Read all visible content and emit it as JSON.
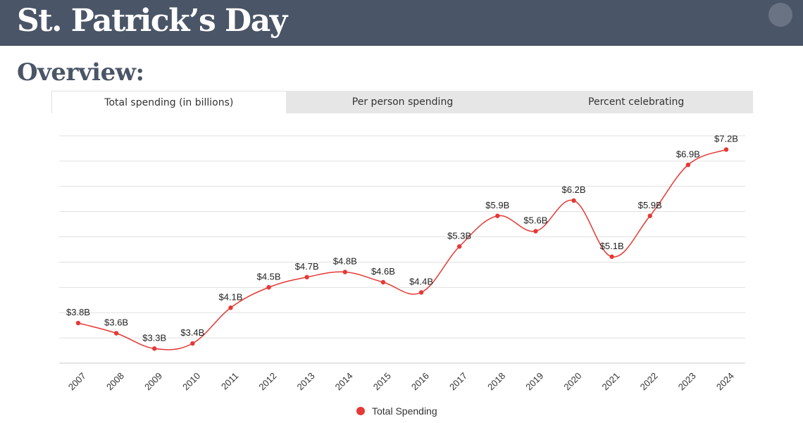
{
  "header": {
    "title": "St. Patrick’s Day"
  },
  "subtitle": "Overview:",
  "tabs": [
    {
      "label": "Total spending (in billions)",
      "active": true
    },
    {
      "label": "Per person spending",
      "active": false
    },
    {
      "label": "Percent celebrating",
      "active": false
    }
  ],
  "colors": {
    "header_bg": "#4a5567",
    "series": "#e53935",
    "grid": "#e0e0e0"
  },
  "chart_data": {
    "type": "line",
    "x": [
      "2007",
      "2008",
      "2009",
      "2010",
      "2011",
      "2012",
      "2013",
      "2014",
      "2015",
      "2016",
      "2017",
      "2018",
      "2019",
      "2020",
      "2021",
      "2022",
      "2023",
      "2024"
    ],
    "series": [
      {
        "name": "Total Spending",
        "values": [
          3.8,
          3.6,
          3.3,
          3.4,
          4.1,
          4.5,
          4.7,
          4.8,
          4.6,
          4.4,
          5.3,
          5.9,
          5.6,
          6.2,
          5.1,
          5.9,
          6.9,
          7.2
        ],
        "labels": [
          "$3.8B",
          "$3.6B",
          "$3.3B",
          "$3.4B",
          "$4.1B",
          "$4.5B",
          "$4.7B",
          "$4.8B",
          "$4.6B",
          "$4.4B",
          "$5.3B",
          "$5.9B",
          "$5.6B",
          "$6.2B",
          "$5.1B",
          "$5.9B",
          "$6.9B",
          "$7.2B"
        ]
      }
    ],
    "grid": true,
    "legend_position": "bottom-center",
    "smooth": true
  }
}
